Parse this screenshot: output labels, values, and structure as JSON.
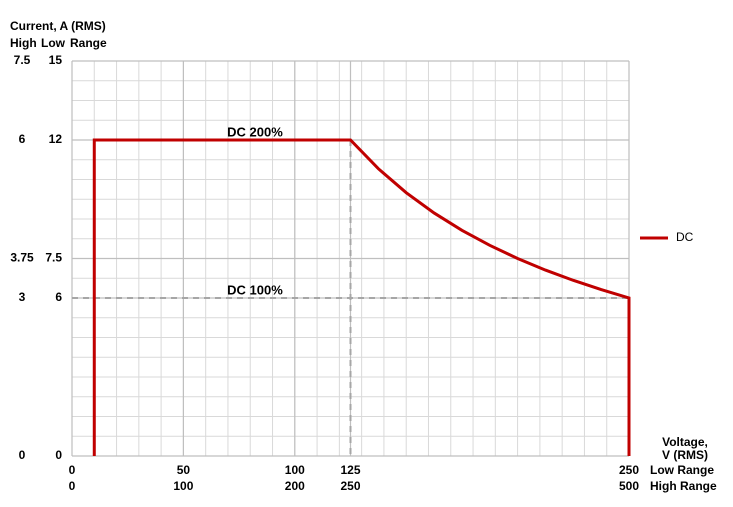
{
  "chart_data": {
    "type": "line",
    "y_axis_title": "Current, A (RMS)",
    "y_axis_headers": [
      "High",
      "Low",
      "Range"
    ],
    "x_axis_title": [
      "Voltage,",
      "V (RMS)"
    ],
    "x_axis_rows": [
      "Low Range",
      "High Range"
    ],
    "xlim": [
      0,
      250
    ],
    "xticks": [
      0,
      50,
      100,
      125,
      250
    ],
    "x2lim": [
      0,
      500
    ],
    "x2ticks": [
      0,
      100,
      200,
      250,
      500
    ],
    "ylim": [
      0,
      15
    ],
    "yticks": [
      0,
      6,
      7.5,
      12,
      15
    ],
    "y2lim": [
      0,
      7.5
    ],
    "y2ticks": [
      0,
      3,
      3.75,
      6,
      7.5
    ],
    "series": [
      {
        "name": "DC",
        "color": "#c00000",
        "x": [
          10,
          10,
          125,
          137.5,
          150,
          162.5,
          175,
          187.5,
          200,
          212.5,
          225,
          237.5,
          250,
          250
        ],
        "values": [
          0,
          12,
          12,
          10.91,
          10,
          9.23,
          8.57,
          8,
          7.5,
          7.06,
          6.67,
          6.32,
          6,
          0
        ]
      }
    ],
    "reference_lines": {
      "x": 125,
      "y": 6
    },
    "annotations": [
      "DC 200%",
      "DC 100%"
    ],
    "grid": true,
    "legend": "right"
  }
}
